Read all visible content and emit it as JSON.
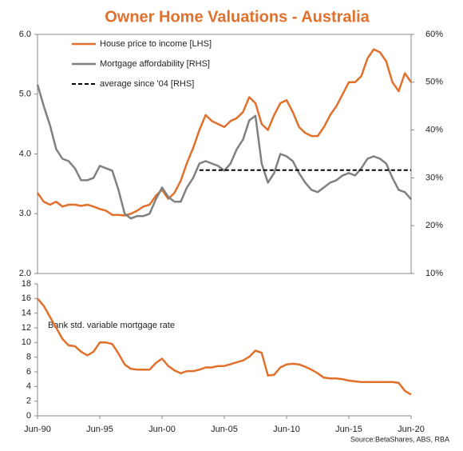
{
  "chart_data": [
    {
      "type": "line",
      "title": "Owner Home Valuations - Australia",
      "legend": "top-left",
      "x": [
        1990.5,
        1991,
        1991.5,
        1992,
        1992.5,
        1993,
        1993.5,
        1994,
        1994.5,
        1995,
        1995.5,
        1996,
        1996.5,
        1997,
        1997.5,
        1998,
        1998.5,
        1999,
        1999.5,
        2000,
        2000.5,
        2001,
        2001.5,
        2002,
        2002.5,
        2003,
        2003.5,
        2004,
        2004.5,
        2005,
        2005.5,
        2006,
        2006.5,
        2007,
        2007.5,
        2008,
        2008.5,
        2009,
        2009.5,
        2010,
        2010.5,
        2011,
        2011.5,
        2012,
        2012.5,
        2013,
        2013.5,
        2014,
        2014.5,
        2015,
        2015.5,
        2016,
        2016.5,
        2017,
        2017.5,
        2018,
        2018.5,
        2019,
        2019.5,
        2020,
        2020.5
      ],
      "xlim": [
        1990.5,
        2020.5
      ],
      "ylim": [
        2,
        6
      ],
      "yticks": [
        {
          "value": 2,
          "label": "2.0"
        },
        {
          "value": 3,
          "label": "3.0"
        },
        {
          "value": 4,
          "label": "4.0"
        },
        {
          "value": 5,
          "label": "5.0"
        },
        {
          "value": 6,
          "label": "6.0"
        }
      ],
      "y2lim": [
        10,
        60
      ],
      "y2ticks": [
        {
          "value": 10,
          "label": "10%"
        },
        {
          "value": 20,
          "label": "20%"
        },
        {
          "value": 30,
          "label": "30%"
        },
        {
          "value": 40,
          "label": "40%"
        },
        {
          "value": 50,
          "label": "50%"
        },
        {
          "value": 60,
          "label": "60%"
        }
      ],
      "series": [
        {
          "name": "House price to income [LHS]",
          "color": "#e0702b",
          "style": "solid",
          "values": [
            3.35,
            3.2,
            3.15,
            3.2,
            3.12,
            3.15,
            3.15,
            3.13,
            3.15,
            3.12,
            3.08,
            3.05,
            2.98,
            2.98,
            2.97,
            3.0,
            3.05,
            3.12,
            3.15,
            3.3,
            3.4,
            3.25,
            3.35,
            3.55,
            3.85,
            4.1,
            4.4,
            4.65,
            4.55,
            4.5,
            4.45,
            4.55,
            4.6,
            4.7,
            4.95,
            4.85,
            4.5,
            4.4,
            4.65,
            4.85,
            4.9,
            4.7,
            4.45,
            4.35,
            4.3,
            4.3,
            4.45,
            4.65,
            4.8,
            5.0,
            5.2,
            5.2,
            5.3,
            5.6,
            5.75,
            5.7,
            5.55,
            5.2,
            5.05,
            5.35,
            5.2
          ]
        },
        {
          "name": "Mortgage affordability [RHS]",
          "color": "#808080",
          "style": "solid",
          "axis": "y2",
          "values": [
            49.5,
            45,
            41,
            36,
            34,
            33.5,
            32,
            29.5,
            29.5,
            30,
            32.5,
            32,
            31.5,
            27.5,
            22.5,
            21.5,
            22,
            22,
            22.5,
            25.5,
            28,
            26,
            25,
            25,
            28,
            30,
            33,
            33.5,
            33,
            32.5,
            31.5,
            33,
            36,
            38,
            42,
            43,
            33,
            29,
            31,
            35,
            34.5,
            33.5,
            31,
            29,
            27.5,
            27,
            28,
            29,
            29.5,
            30.5,
            31,
            30.5,
            32,
            34,
            34.5,
            34,
            33,
            30,
            27.5,
            27,
            25.5
          ]
        },
        {
          "name": "average since '04 [RHS]",
          "color": "#000000",
          "style": "dashed",
          "axis": "y2",
          "values": [
            null,
            null,
            null,
            null,
            null,
            null,
            null,
            null,
            null,
            null,
            null,
            null,
            null,
            null,
            null,
            null,
            null,
            null,
            null,
            null,
            null,
            null,
            null,
            null,
            null,
            null,
            31.6,
            31.6,
            31.6,
            31.6,
            31.6,
            31.6,
            31.6,
            31.6,
            31.6,
            31.6,
            31.6,
            31.6,
            31.6,
            31.6,
            31.6,
            31.6,
            31.6,
            31.6,
            31.6,
            31.6,
            31.6,
            31.6,
            31.6,
            31.6,
            31.6,
            31.6,
            31.6,
            31.6,
            31.6,
            31.6,
            31.6,
            31.6,
            31.6,
            31.6,
            31.6
          ]
        }
      ]
    },
    {
      "type": "line",
      "annotation": "Bank std. variable mortgage rate",
      "source": "Source:BetaShares, ABS, RBA",
      "color": "#e0702b",
      "x": [
        1990.5,
        1991,
        1991.5,
        1992,
        1992.5,
        1993,
        1993.5,
        1994,
        1994.5,
        1995,
        1995.5,
        1996,
        1996.5,
        1997,
        1997.5,
        1998,
        1998.5,
        1999,
        1999.5,
        2000,
        2000.5,
        2001,
        2001.5,
        2002,
        2002.5,
        2003,
        2003.5,
        2004,
        2004.5,
        2005,
        2005.5,
        2006,
        2006.5,
        2007,
        2007.5,
        2008,
        2008.5,
        2009,
        2009.5,
        2010,
        2010.5,
        2011,
        2011.5,
        2012,
        2012.5,
        2013,
        2013.5,
        2014,
        2014.5,
        2015,
        2015.5,
        2016,
        2016.5,
        2017,
        2017.5,
        2018,
        2018.5,
        2019,
        2019.5,
        2020,
        2020.5
      ],
      "values": [
        16,
        15,
        13.5,
        12,
        10.5,
        9.6,
        9.5,
        8.75,
        8.25,
        8.75,
        10,
        10,
        9.8,
        8.5,
        7,
        6.4,
        6.3,
        6.3,
        6.3,
        7.2,
        7.8,
        6.8,
        6.2,
        5.8,
        6.1,
        6.1,
        6.3,
        6.6,
        6.6,
        6.8,
        6.8,
        7.05,
        7.3,
        7.55,
        8.05,
        8.9,
        8.6,
        5.5,
        5.6,
        6.6,
        7.0,
        7.1,
        7.0,
        6.7,
        6.3,
        5.8,
        5.2,
        5.1,
        5.1,
        5.0,
        4.8,
        4.7,
        4.6,
        4.6,
        4.6,
        4.6,
        4.6,
        4.6,
        4.5,
        3.4,
        2.9
      ],
      "xlim": [
        1990.5,
        2020.5
      ],
      "xticks": [
        {
          "value": 1990.5,
          "label": "Jun-90"
        },
        {
          "value": 1995.5,
          "label": "Jun-95"
        },
        {
          "value": 2000.5,
          "label": "Jun-00"
        },
        {
          "value": 2005.5,
          "label": "Jun-05"
        },
        {
          "value": 2010.5,
          "label": "Jun-10"
        },
        {
          "value": 2015.5,
          "label": "Jun-15"
        },
        {
          "value": 2020.5,
          "label": "Jun-20"
        }
      ],
      "ylim": [
        0,
        18
      ],
      "yticks": [
        0,
        2,
        4,
        6,
        8,
        10,
        12,
        14,
        16,
        18
      ]
    }
  ]
}
